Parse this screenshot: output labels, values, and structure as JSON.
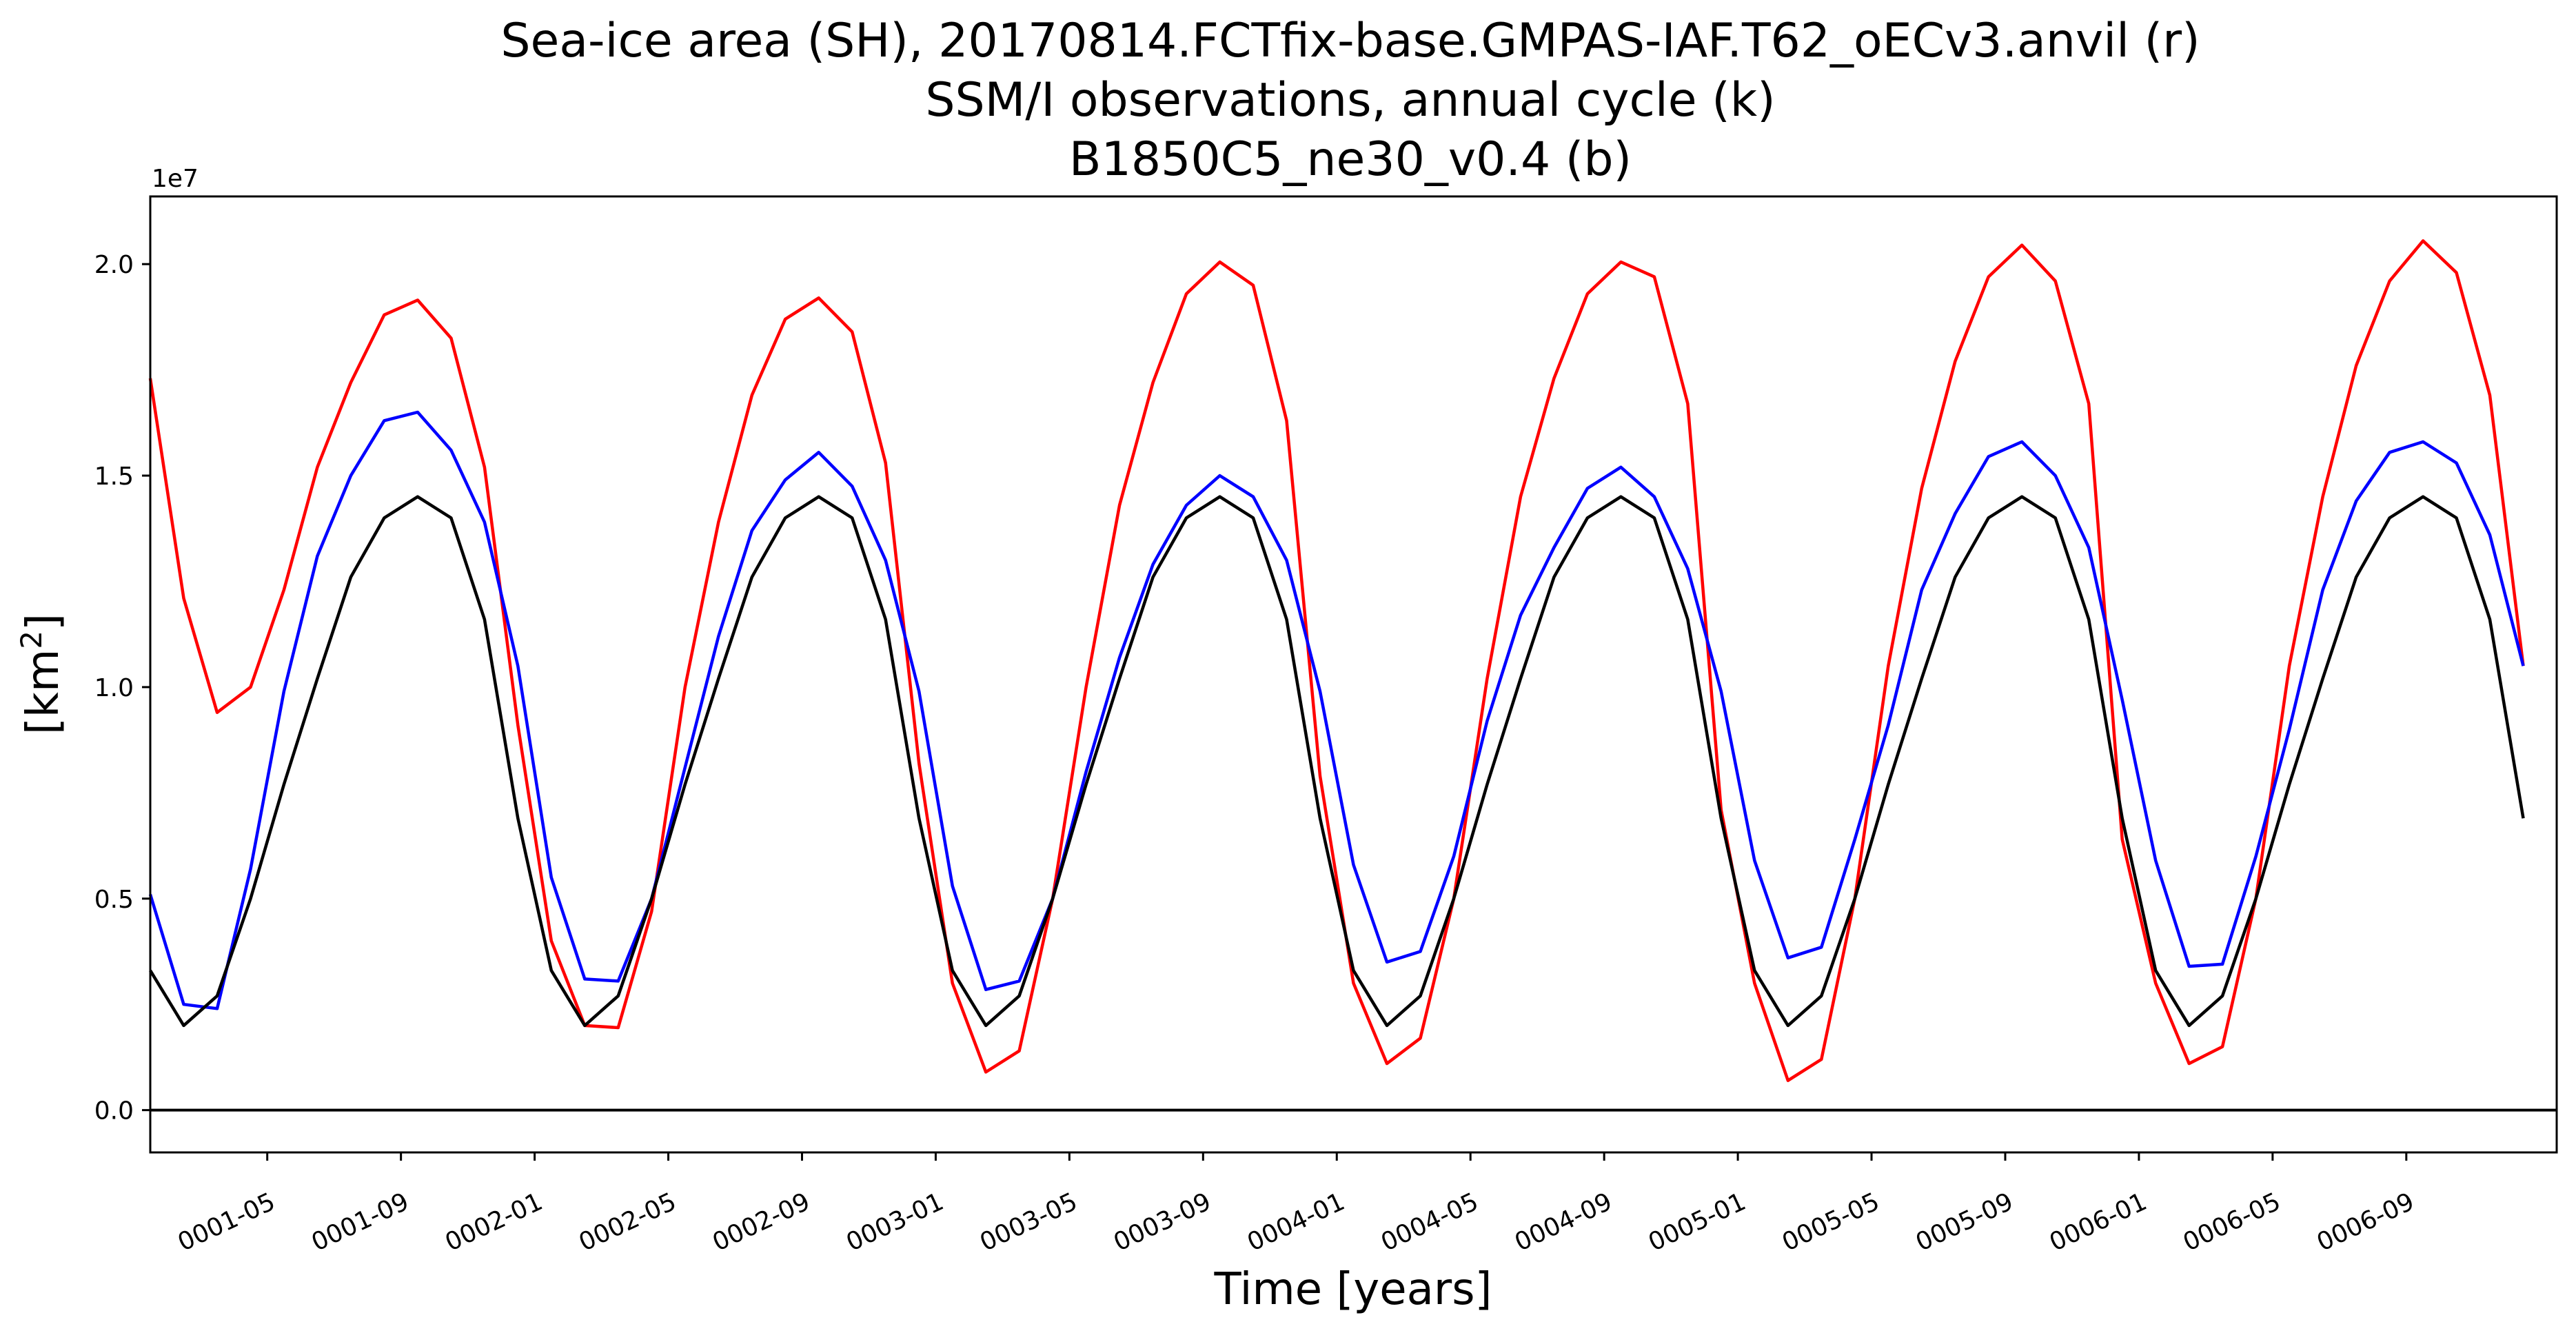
{
  "chart_data": {
    "type": "line",
    "title_lines": [
      "Sea-ice area (SH), 20170814.FCTfix-base.GMPAS-IAF.T62_oECv3.anvil (r)",
      "SSM/I observations, annual cycle (k)",
      "B1850C5_ne30_v0.4 (b)"
    ],
    "xlabel": "Time [years]",
    "ylabel_base": "[km",
    "ylabel_sup": "2",
    "ylabel_end": "]",
    "y_offset_label": "1e7",
    "ylim": [
      -1000000,
      21600000
    ],
    "yticks": [
      0,
      5000000,
      10000000,
      15000000,
      20000000
    ],
    "ytick_labels": [
      "0.0",
      "0.5",
      "1.0",
      "1.5",
      "2.0"
    ],
    "xlim": [
      1,
      73
    ],
    "xticks": [
      4.5,
      8.5,
      12.5,
      16.5,
      20.5,
      24.5,
      28.5,
      32.5,
      36.5,
      40.5,
      44.5,
      48.5,
      52.5,
      56.5,
      60.5,
      64.5,
      68.5
    ],
    "xtick_labels": [
      "0001-05",
      "0001-09",
      "0002-01",
      "0002-05",
      "0002-09",
      "0003-01",
      "0003-05",
      "0003-09",
      "0004-01",
      "0004-05",
      "0004-09",
      "0005-01",
      "0005-05",
      "0005-09",
      "0006-01",
      "0006-05",
      "0006-09"
    ],
    "zero_line": true,
    "colors": {
      "r": "#ff0000",
      "b": "#0000ff",
      "k": "#000000"
    },
    "series": [
      {
        "color": "#ff0000",
        "values": [
          17300000,
          12100000,
          9400000,
          10000000,
          12300000,
          15200000,
          17200000,
          18800000,
          19150000,
          18250000,
          15200000,
          9100000,
          4000000,
          2000000,
          1950000,
          4700000,
          10000000,
          13900000,
          16900000,
          18700000,
          19200000,
          18400000,
          15300000,
          8200000,
          3000000,
          900000,
          1400000,
          5000000,
          10000000,
          14300000,
          17200000,
          19300000,
          20050000,
          19500000,
          16300000,
          7900000,
          3000000,
          1100000,
          1700000,
          5000000,
          10200000,
          14500000,
          17300000,
          19300000,
          20050000,
          19700000,
          16700000,
          7100000,
          3000000,
          700000,
          1200000,
          5000000,
          10500000,
          14700000,
          17700000,
          19700000,
          20450000,
          19600000,
          16700000,
          6400000,
          3000000,
          1100000,
          1500000,
          5000000,
          10500000,
          14500000,
          17600000,
          19600000,
          20550000,
          19800000,
          16900000,
          10500000
        ]
      },
      {
        "color": "#0000ff",
        "values": [
          5100000,
          2500000,
          2400000,
          5700000,
          9900000,
          13100000,
          15000000,
          16300000,
          16500000,
          15600000,
          13900000,
          10500000,
          5500000,
          3100000,
          3050000,
          5000000,
          8100000,
          11200000,
          13700000,
          14900000,
          15550000,
          14750000,
          13000000,
          9900000,
          5300000,
          2850000,
          3050000,
          5000000,
          8000000,
          10700000,
          12900000,
          14300000,
          15000000,
          14500000,
          13000000,
          9900000,
          5800000,
          3500000,
          3750000,
          6000000,
          9200000,
          11700000,
          13300000,
          14700000,
          15200000,
          14500000,
          12800000,
          9900000,
          5900000,
          3600000,
          3850000,
          6400000,
          9100000,
          12300000,
          14100000,
          15450000,
          15800000,
          15000000,
          13300000,
          9700000,
          5900000,
          3400000,
          3450000,
          6000000,
          9000000,
          12300000,
          14400000,
          15550000,
          15800000,
          15300000,
          13600000,
          10500000
        ]
      },
      {
        "color": "#000000",
        "values": [
          3300000,
          2000000,
          2700000,
          5000000,
          7700000,
          10200000,
          12600000,
          14000000,
          14500000,
          14000000,
          11600000,
          6900000,
          3300000,
          2000000,
          2700000,
          5000000,
          7700000,
          10200000,
          12600000,
          14000000,
          14500000,
          14000000,
          11600000,
          6900000,
          3300000,
          2000000,
          2700000,
          5000000,
          7700000,
          10200000,
          12600000,
          14000000,
          14500000,
          14000000,
          11600000,
          6900000,
          3300000,
          2000000,
          2700000,
          5000000,
          7700000,
          10200000,
          12600000,
          14000000,
          14500000,
          14000000,
          11600000,
          6900000,
          3300000,
          2000000,
          2700000,
          5000000,
          7700000,
          10200000,
          12600000,
          14000000,
          14500000,
          14000000,
          11600000,
          6900000,
          3300000,
          2000000,
          2700000,
          5000000,
          7700000,
          10200000,
          12600000,
          14000000,
          14500000,
          14000000,
          11600000,
          6900000
        ]
      }
    ]
  }
}
